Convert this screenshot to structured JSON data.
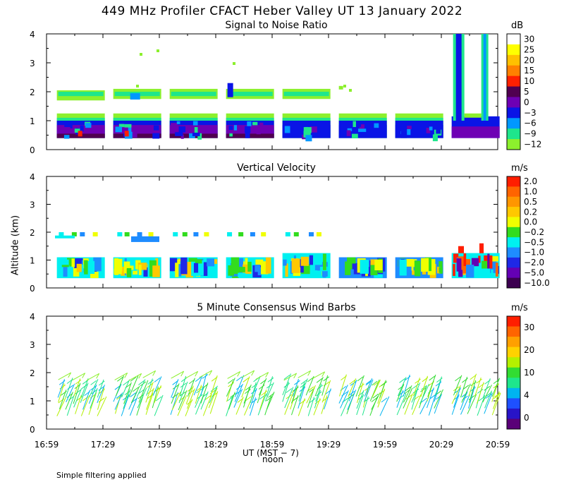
{
  "figure": {
    "title": "449 MHz Profiler CFACT Heber Valley UT 13 January 2022",
    "ylabel": "Altitude (km)",
    "xlabel": "UT  (MST − 7)",
    "noon_label": "noon",
    "footnote": "Simple filtering applied"
  },
  "chart_data": [
    {
      "type": "heatmap",
      "title": "Signal to Noise Ratio",
      "colorbar_unit": "dB",
      "colorbar_ticks": [
        "30",
        "25",
        "20",
        "15",
        "10",
        "5",
        "0",
        "−3",
        "−6",
        "−9",
        "−12"
      ],
      "colorbar_colors": [
        "#ffffff",
        "#ffff00",
        "#ffc000",
        "#ff8000",
        "#ff2000",
        "#500050",
        "#6e00b4",
        "#0a14e6",
        "#0098ff",
        "#1ee68c",
        "#8cf02d"
      ],
      "y_ticks": [
        "0",
        "1",
        "2",
        "3",
        "4"
      ],
      "ylim": [
        0,
        4
      ],
      "xlim": [
        "16:59",
        "20:59"
      ],
      "scan_starts_ut": [
        "17:00",
        "17:30",
        "18:00",
        "18:30",
        "19:00",
        "19:30",
        "20:00",
        "20:30"
      ],
      "layers_km": {
        "lower_layer": [
          0.3,
          1.3
        ],
        "upper_layer": [
          1.7,
          2.2
        ]
      },
      "note": "strong returns above 4 km in the 20:30 scan"
    },
    {
      "type": "heatmap",
      "title": "Vertical Velocity",
      "colorbar_unit": "m/s",
      "colorbar_ticks": [
        "2.0",
        "1.0",
        "0.5",
        "0.2",
        "0.0",
        "−0.2",
        "−0.5",
        "−1.0",
        "−2.0",
        "−5.0",
        "−10.0"
      ],
      "colorbar_colors": [
        "#ff1e00",
        "#ff6400",
        "#ff9600",
        "#ffc800",
        "#f0ff00",
        "#32dc1e",
        "#00f0f0",
        "#1e8cff",
        "#1e28e6",
        "#6400b4",
        "#3c0050"
      ],
      "y_ticks": [
        "0",
        "1",
        "2",
        "3",
        "4"
      ],
      "ylim": [
        0,
        4
      ],
      "xlim": [
        "16:59",
        "20:59"
      ]
    },
    {
      "type": "scatter",
      "title": "5 Minute Consensus Wind Barbs",
      "colorbar_unit": "m/s",
      "colorbar_ticks": [
        "30",
        "20",
        "10",
        "4",
        "0"
      ],
      "colorbar_colors": [
        "#ff1e00",
        "#ff6400",
        "#ffa000",
        "#ffd200",
        "#b4f000",
        "#32dc32",
        "#1ee68c",
        "#00b4f0",
        "#1e50ff",
        "#2814c8",
        "#5a0078"
      ],
      "y_ticks": [
        "0",
        "1",
        "2",
        "3",
        "4"
      ],
      "ylim": [
        0,
        4
      ],
      "xlim": [
        "16:59",
        "20:59"
      ],
      "x_ticks": [
        "16:59",
        "17:29",
        "17:59",
        "18:29",
        "18:59",
        "19:29",
        "19:59",
        "20:29",
        "20:59"
      ],
      "wind_speed_range_mps": {
        "lower_layer": [
          4,
          10
        ],
        "upper_layer": [
          10,
          14
        ]
      }
    }
  ]
}
